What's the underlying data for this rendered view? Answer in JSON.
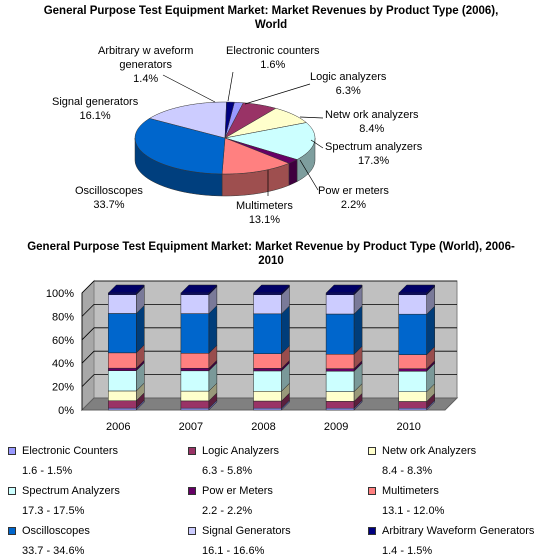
{
  "chart_data": [
    {
      "type": "pie",
      "title": "General Purpose Test Equipment Market: Market Revenues by Product Type (2006), World",
      "slices": [
        {
          "label": "Electronic counters",
          "value": 1.6,
          "display": "1.6%",
          "color": "#9999ff"
        },
        {
          "label": "Logic analyzers",
          "value": 6.3,
          "display": "6.3%",
          "color": "#993366"
        },
        {
          "label": "Network analyzers",
          "value": 8.4,
          "display": "8.4%",
          "color": "#ffffcc"
        },
        {
          "label": "Spectrum analyzers",
          "value": 17.3,
          "display": "17.3%",
          "color": "#ccffff"
        },
        {
          "label": "Power meters",
          "value": 2.2,
          "display": "2.2%",
          "color": "#660066"
        },
        {
          "label": "Multimeters",
          "value": 13.1,
          "display": "13.1%",
          "color": "#ff8080"
        },
        {
          "label": "Oscilloscopes",
          "value": 33.7,
          "display": "33.7%",
          "color": "#0066cc"
        },
        {
          "label": "Signal generators",
          "value": 16.1,
          "display": "16.1%",
          "color": "#ccccff"
        },
        {
          "label": "Arbitrary waveform generators",
          "value": 1.4,
          "display": "1.4%",
          "color": "#000080"
        }
      ]
    },
    {
      "type": "bar",
      "stacked": "percent",
      "title": "General Purpose Test Equipment Market: Market Revenue by Product Type (World), 2006-2010",
      "categories": [
        "2006",
        "2007",
        "2008",
        "2009",
        "2010"
      ],
      "yticks": [
        "0%",
        "20%",
        "40%",
        "60%",
        "80%",
        "100%"
      ],
      "ylim": [
        0,
        100
      ],
      "series": [
        {
          "name": "Electronic Counters",
          "range": "1.6 - 1.5%",
          "color": "#9999ff",
          "values": [
            1.6,
            1.58,
            1.55,
            1.52,
            1.5
          ]
        },
        {
          "name": "Logic Analyzers",
          "range": "6.3 - 5.8%",
          "color": "#993366",
          "values": [
            6.3,
            6.2,
            6.1,
            5.9,
            5.8
          ]
        },
        {
          "name": "Network Analyzers",
          "range": "8.4 - 8.3%",
          "color": "#ffffcc",
          "values": [
            8.4,
            8.38,
            8.35,
            8.32,
            8.3
          ]
        },
        {
          "name": "Spectrum Analyzers",
          "range": "17.3 - 17.5%",
          "color": "#ccffff",
          "values": [
            17.3,
            17.35,
            17.4,
            17.45,
            17.5
          ]
        },
        {
          "name": "Power Meters",
          "range": "2.2 - 2.2%",
          "color": "#660066",
          "values": [
            2.2,
            2.2,
            2.2,
            2.2,
            2.2
          ]
        },
        {
          "name": "Multimeters",
          "range": "13.1 - 12.0%",
          "color": "#ff8080",
          "values": [
            13.1,
            12.8,
            12.5,
            12.3,
            12.0
          ]
        },
        {
          "name": "Oscilloscopes",
          "range": "33.7 - 34.6%",
          "color": "#0066cc",
          "values": [
            33.7,
            33.9,
            34.1,
            34.4,
            34.6
          ]
        },
        {
          "name": "Signal Generators",
          "range": "16.1 - 16.6%",
          "color": "#ccccff",
          "values": [
            16.1,
            16.2,
            16.35,
            16.5,
            16.6
          ]
        },
        {
          "name": "Arbitrary Waveform Generators",
          "range": "1.4 - 1.5%",
          "color": "#000080",
          "values": [
            1.4,
            1.42,
            1.45,
            1.48,
            1.5
          ]
        }
      ]
    }
  ],
  "pie_labels": {
    "arbitrary": [
      "Arbitrary w aveform",
      "generators",
      "1.4%"
    ],
    "counters": [
      "Electronic counters",
      "1.6%"
    ],
    "logic": [
      "Logic analyzers",
      "6.3%"
    ],
    "network": [
      "Netw ork analyzers",
      "8.4%"
    ],
    "spectrum": [
      "Spectrum analyzers",
      "17.3%"
    ],
    "power": [
      "Pow er meters",
      "2.2%"
    ],
    "multi": [
      "Multimeters",
      "13.1%"
    ],
    "osc": [
      "Oscilloscopes",
      "33.7%"
    ],
    "signal": [
      "Signal generators",
      "16.1%"
    ]
  },
  "legend_names": [
    "Electronic Counters",
    "Logic Analyzers",
    "Netw ork Analyzers",
    "Spectrum Analyzers",
    "Pow er Meters",
    "Multimeters",
    "Oscilloscopes",
    "Signal Generators",
    "Arbitrary Waveform Generators"
  ]
}
